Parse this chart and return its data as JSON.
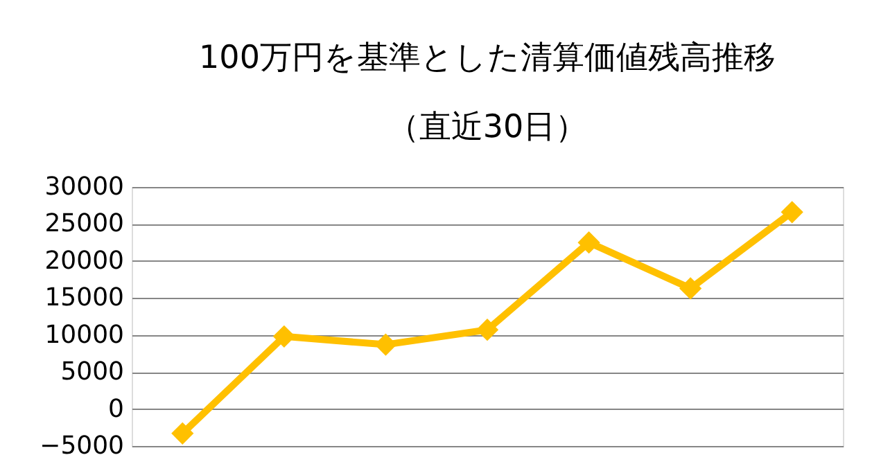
{
  "chart_data": {
    "type": "line",
    "title": [
      "100万円を基準とした清算価値残高推移",
      "（直近30日）"
    ],
    "categories": [
      null,
      null,
      null,
      null,
      null,
      null,
      null
    ],
    "series": [
      {
        "color": "#ffc000",
        "values": [
          -3300,
          9800,
          8700,
          10700,
          22500,
          16300,
          26600
        ]
      }
    ],
    "ylim": [
      -5000,
      30000
    ],
    "yticks": [
      -5000,
      0,
      5000,
      10000,
      15000,
      20000,
      25000,
      30000
    ],
    "grid": "y",
    "marker": "diamond",
    "line_style": "solid",
    "tick_labels": "y"
  }
}
